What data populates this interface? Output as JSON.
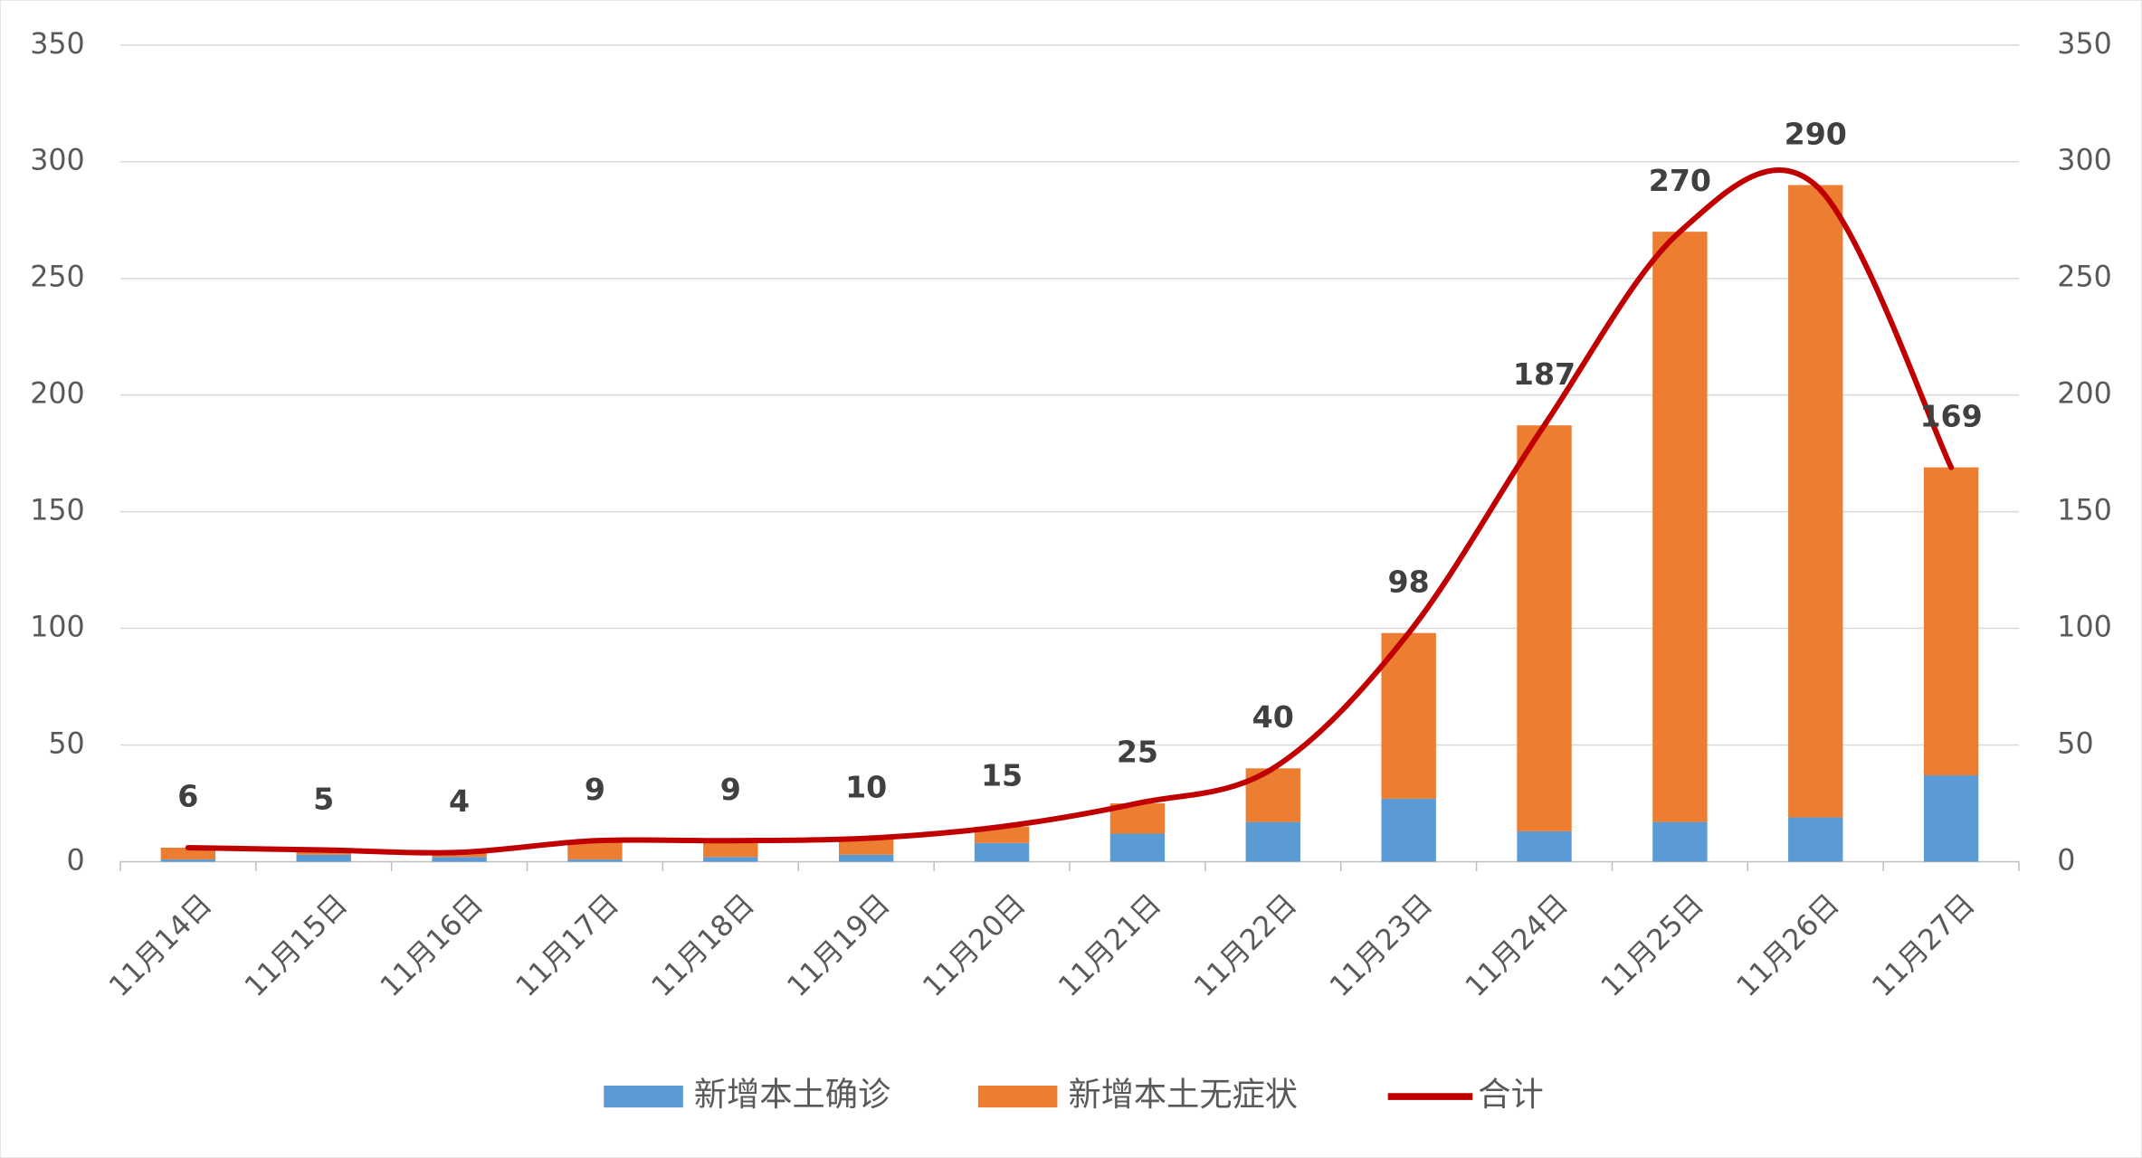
{
  "chart_data": {
    "type": "bar",
    "stacked": true,
    "categories": [
      "11月14日",
      "11月15日",
      "11月16日",
      "11月17日",
      "11月18日",
      "11月19日",
      "11月20日",
      "11月21日",
      "11月22日",
      "11月23日",
      "11月24日",
      "11月25日",
      "11月26日",
      "11月27日"
    ],
    "series": [
      {
        "name": "新增本土确诊",
        "color": "#5b9bd5",
        "values": [
          1,
          3,
          2,
          1,
          2,
          3,
          8,
          12,
          17,
          27,
          13,
          17,
          19,
          37
        ]
      },
      {
        "name": "新增本土无症状",
        "color": "#ed7d31",
        "values": [
          5,
          2,
          2,
          8,
          7,
          7,
          7,
          13,
          23,
          71,
          174,
          253,
          271,
          132
        ]
      },
      {
        "name": "合计",
        "type": "line",
        "axis": "y2",
        "color": "#c00000",
        "values": [
          6,
          5,
          4,
          9,
          9,
          10,
          15,
          25,
          40,
          98,
          187,
          270,
          290,
          169
        ]
      }
    ],
    "ylim": [
      0,
      350
    ],
    "yticks": [
      0,
      50,
      100,
      150,
      200,
      250,
      300,
      350
    ],
    "y2lim": [
      0,
      350
    ],
    "y2ticks": [
      0,
      50,
      100,
      150,
      200,
      250,
      300,
      350
    ],
    "grid": true,
    "legend": "bottom"
  }
}
